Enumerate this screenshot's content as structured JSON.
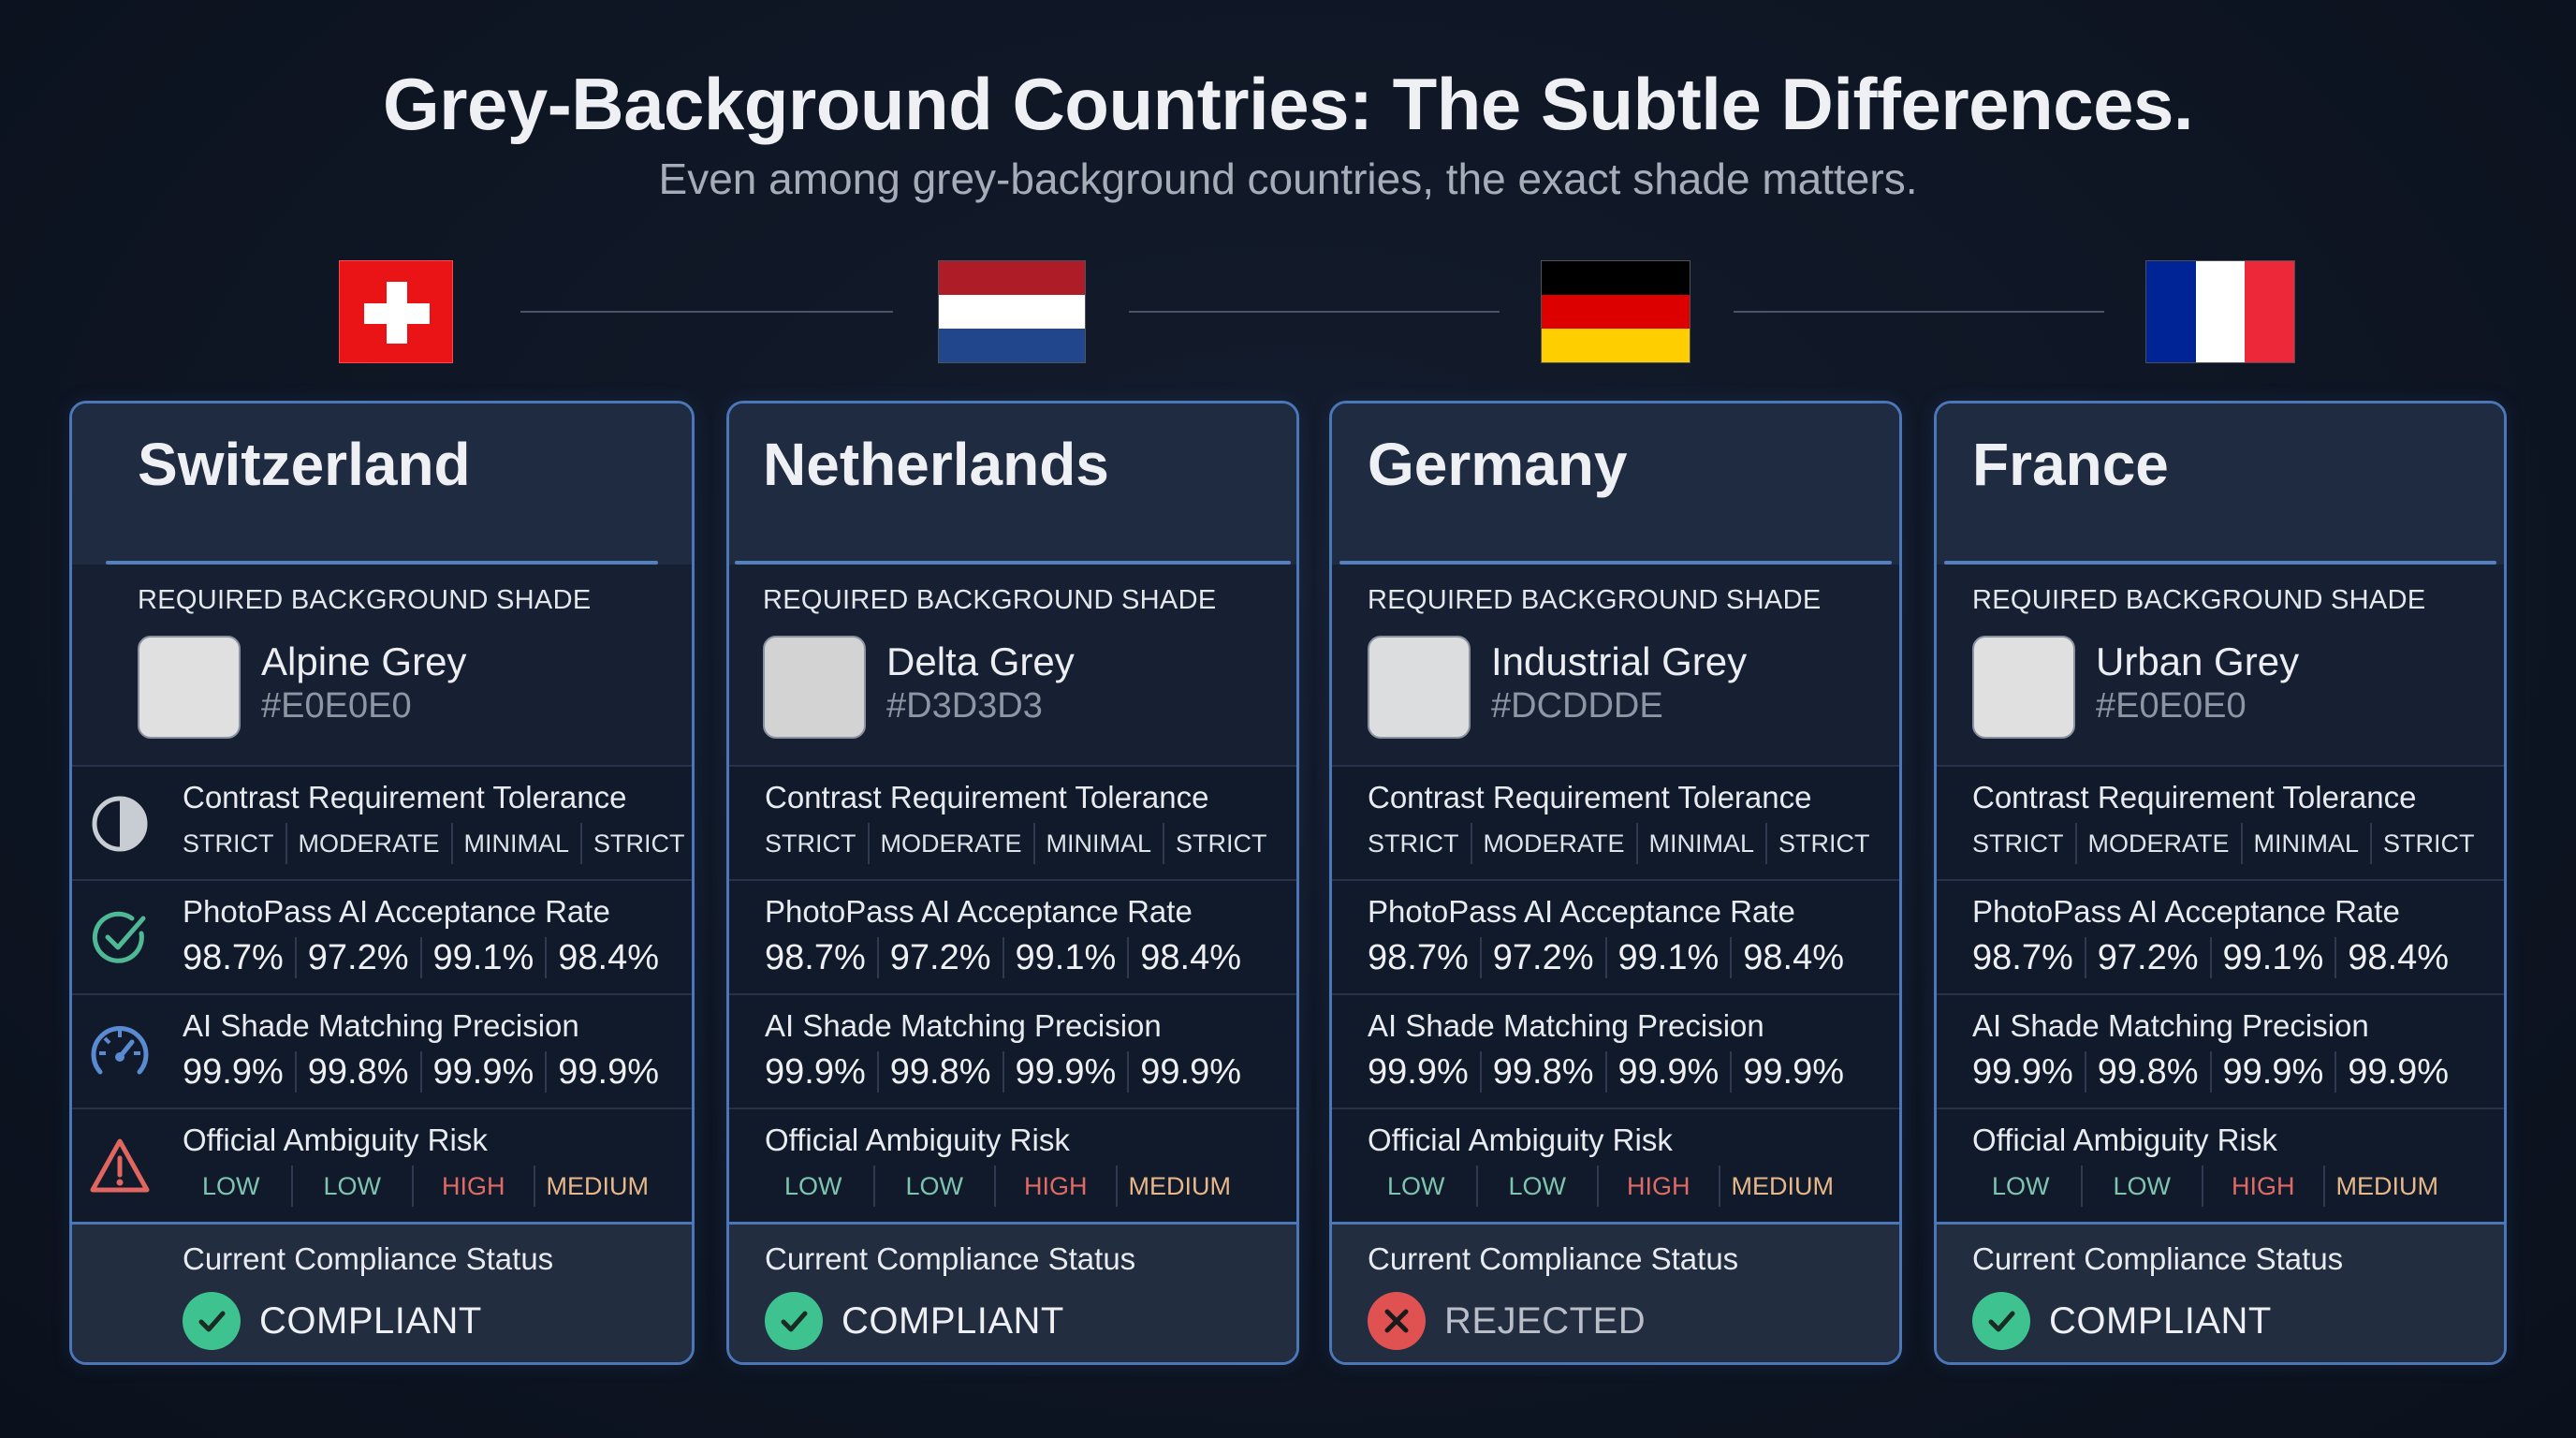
{
  "header": {
    "title": "Grey-Background Countries: The Subtle Differences.",
    "subtitle": "Even among grey-background countries, the exact shade matters."
  },
  "colors": {
    "card_border": "#4b76b8",
    "compliant": "#3ec28f",
    "rejected": "#e05252",
    "risk_low": "#7fc4b0",
    "risk_high": "#e06a64",
    "risk_medium": "#e8b88a"
  },
  "labels": {
    "shade_heading": "REQUIRED BACKGROUND SHADE",
    "metric_contrast": "Contrast Requirement Tolerance",
    "metric_acceptance": "PhotoPass AI Acceptance Rate",
    "metric_precision": "AI Shade Matching Precision",
    "metric_risk": "Official Ambiguity Risk",
    "status_heading": "Current Compliance Status"
  },
  "flags": [
    {
      "country": "Switzerland",
      "icon": "swiss-flag"
    },
    {
      "country": "Netherlands",
      "icon": "dutch-flag",
      "colors": [
        "#ae1c28",
        "#ffffff",
        "#21468b"
      ]
    },
    {
      "country": "Germany",
      "icon": "german-flag",
      "colors": [
        "#000000",
        "#dd0000",
        "#ffce00"
      ]
    },
    {
      "country": "France",
      "icon": "french-flag",
      "colors": [
        "#002395",
        "#ffffff",
        "#ed2939"
      ]
    }
  ],
  "cards": [
    {
      "name": "Switzerland",
      "shade_name": "Alpine Grey",
      "shade_hex": "#E0E0E0",
      "contrast": [
        "STRICT",
        "MODERATE",
        "MINIMAL",
        "STRICT"
      ],
      "acceptance": [
        "98.7%",
        "97.2%",
        "99.1%",
        "98.4%"
      ],
      "precision": [
        "99.9%",
        "99.8%",
        "99.9%",
        "99.9%"
      ],
      "risk": [
        "LOW",
        "LOW",
        "HIGH",
        "MEDIUM"
      ],
      "status": "COMPLIANT",
      "status_icon": "check-circle-icon"
    },
    {
      "name": "Netherlands",
      "shade_name": "Delta Grey",
      "shade_hex": "#D3D3D3",
      "contrast": [
        "STRICT",
        "MODERATE",
        "MINIMAL",
        "STRICT"
      ],
      "acceptance": [
        "98.7%",
        "97.2%",
        "99.1%",
        "98.4%"
      ],
      "precision": [
        "99.9%",
        "99.8%",
        "99.9%",
        "99.9%"
      ],
      "risk": [
        "LOW",
        "LOW",
        "HIGH",
        "MEDIUM"
      ],
      "status": "COMPLIANT",
      "status_icon": "check-circle-icon"
    },
    {
      "name": "Germany",
      "shade_name": "Industrial Grey",
      "shade_hex": "#DCDDDE",
      "contrast": [
        "STRICT",
        "MODERATE",
        "MINIMAL",
        "STRICT"
      ],
      "acceptance": [
        "98.7%",
        "97.2%",
        "99.1%",
        "98.4%"
      ],
      "precision": [
        "99.9%",
        "99.8%",
        "99.9%",
        "99.9%"
      ],
      "risk": [
        "LOW",
        "LOW",
        "HIGH",
        "MEDIUM"
      ],
      "status": "REJECTED",
      "status_icon": "x-circle-icon"
    },
    {
      "name": "France",
      "shade_name": "Urban Grey",
      "shade_hex": "#E0E0E0",
      "contrast": [
        "STRICT",
        "MODERATE",
        "MINIMAL",
        "STRICT"
      ],
      "acceptance": [
        "98.7%",
        "97.2%",
        "99.1%",
        "98.4%"
      ],
      "precision": [
        "99.9%",
        "99.8%",
        "99.9%",
        "99.9%"
      ],
      "risk": [
        "LOW",
        "LOW",
        "HIGH",
        "MEDIUM"
      ],
      "status": "COMPLIANT",
      "status_icon": "check-circle-icon"
    }
  ]
}
